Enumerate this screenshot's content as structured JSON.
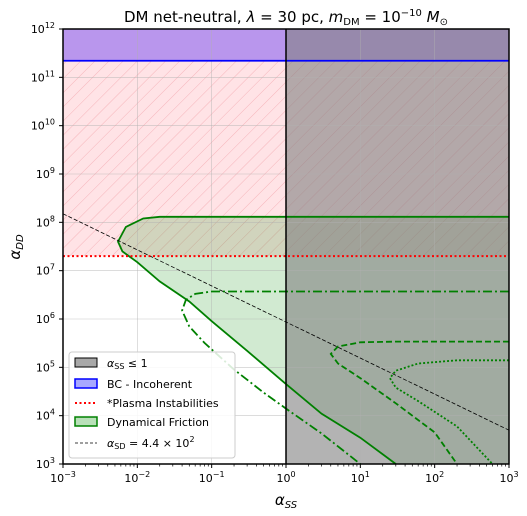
{
  "chart_data": {
    "type": "area",
    "title_parts": {
      "prefix": "DM net-neutral, ",
      "lambda": "λ",
      "lambda_value": " = 30 pc, ",
      "m": "m",
      "dm_sub": "DM",
      "mass_value": " = 10",
      "mass_exp": "−10",
      "msun": " M",
      "sun_sub": "⊙"
    },
    "xlabel": {
      "main": "α",
      "sub": "SS"
    },
    "ylabel": {
      "main": "α",
      "sub": "DD"
    },
    "xscale": "log",
    "yscale": "log",
    "xlim": [
      0.001,
      1000
    ],
    "ylim": [
      1000,
      1000000000000
    ],
    "grid": true,
    "legend_position": "lower-left",
    "x_ticks": [
      {
        "base": "10",
        "exp": "−3",
        "value": 0.001
      },
      {
        "base": "10",
        "exp": "−2",
        "value": 0.01
      },
      {
        "base": "10",
        "exp": "−1",
        "value": 0.1
      },
      {
        "base": "10",
        "exp": "0",
        "value": 1
      },
      {
        "base": "10",
        "exp": "1",
        "value": 10
      },
      {
        "base": "10",
        "exp": "2",
        "value": 100
      },
      {
        "base": "10",
        "exp": "3",
        "value": 1000
      }
    ],
    "y_ticks": [
      {
        "base": "10",
        "exp": "3",
        "value": 1000
      },
      {
        "base": "10",
        "exp": "4",
        "value": 10000
      },
      {
        "base": "10",
        "exp": "5",
        "value": 100000
      },
      {
        "base": "10",
        "exp": "6",
        "value": 1000000
      },
      {
        "base": "10",
        "exp": "7",
        "value": 10000000
      },
      {
        "base": "10",
        "exp": "8",
        "value": 100000000
      },
      {
        "base": "10",
        "exp": "9",
        "value": 1000000000
      },
      {
        "base": "10",
        "exp": "10",
        "value": 10000000000
      },
      {
        "base": "10",
        "exp": "11",
        "value": 100000000000
      },
      {
        "base": "10",
        "exp": "12",
        "value": 1000000000000
      }
    ],
    "regions": {
      "ss_le_1": {
        "x_min": 1,
        "x_max": 1000,
        "y_min": 1000,
        "y_max": 1000000000000,
        "color": "#808080"
      },
      "bc_incoherent": {
        "y_min": 220000000000,
        "y_max": 1000000000000,
        "color": "#7f3fdf",
        "edge_color": "#0000ff"
      },
      "plasma": {
        "y_min": 20000000,
        "y_max": 220000000000,
        "color": "#ffb0b8",
        "line_color": "#ff0000",
        "line_y": 20000000
      },
      "dynamical_friction": {
        "color": "#2ca02c",
        "edge_color": "#008000"
      }
    },
    "series": [
      {
        "name": "dynamical_friction_solid",
        "style": "solid",
        "points": [
          [
            1000,
            130000000
          ],
          [
            20,
            130000000
          ],
          [
            0.02,
            130000000
          ],
          [
            0.012,
            120000000
          ],
          [
            0.007,
            80000000
          ],
          [
            0.0055,
            40000000
          ],
          [
            0.0063,
            25000000
          ],
          [
            0.01,
            15000000
          ],
          [
            0.02,
            6000000
          ],
          [
            0.05,
            2300000
          ],
          [
            0.1,
            900000
          ],
          [
            0.3,
            220000
          ],
          [
            1,
            45000
          ],
          [
            3,
            11000
          ],
          [
            10,
            3500
          ],
          [
            30,
            1000
          ]
        ]
      },
      {
        "name": "dynamical_friction_dashdot",
        "style": "dashdot",
        "points": [
          [
            1000,
            3700000
          ],
          [
            100,
            3700000
          ],
          [
            0.1,
            3700000
          ],
          [
            0.06,
            3300000
          ],
          [
            0.045,
            2500000
          ],
          [
            0.04,
            1500000
          ],
          [
            0.05,
            700000
          ],
          [
            0.08,
            320000
          ],
          [
            0.2,
            90000
          ],
          [
            0.5,
            30000
          ],
          [
            1,
            14000
          ],
          [
            3,
            4300
          ],
          [
            10,
            1000
          ]
        ]
      },
      {
        "name": "dynamical_friction_dashed",
        "style": "dashed",
        "points": [
          [
            1000,
            340000
          ],
          [
            30,
            340000
          ],
          [
            10,
            330000
          ],
          [
            5,
            270000
          ],
          [
            4,
            190000
          ],
          [
            5,
            120000
          ],
          [
            10,
            60000
          ],
          [
            30,
            18000
          ],
          [
            100,
            4500
          ],
          [
            200,
            1000
          ]
        ]
      },
      {
        "name": "dynamical_friction_dotted",
        "style": "dotted",
        "points": [
          [
            1000,
            140000
          ],
          [
            200,
            140000
          ],
          [
            60,
            120000
          ],
          [
            30,
            85000
          ],
          [
            25,
            60000
          ],
          [
            30,
            38000
          ],
          [
            60,
            20000
          ],
          [
            200,
            6000
          ],
          [
            600,
            1000
          ]
        ]
      },
      {
        "name": "alpha_sd_line",
        "style": "thin-dashed",
        "points": [
          [
            0.001,
            150000000
          ],
          [
            1000,
            5000
          ]
        ]
      }
    ],
    "legend": [
      {
        "key": "ss",
        "math": "α",
        "sub": "SS",
        "tail": " ≤ 1",
        "style": "fill",
        "face": "#a8a8a8",
        "edge": "#000000"
      },
      {
        "key": "bc",
        "text": "BC - Incoherent",
        "style": "fill",
        "face": "#a8a8ff",
        "edge": "#0000ff"
      },
      {
        "key": "plasma",
        "text": "*Plasma Instabilities",
        "style": "dotted-line",
        "edge": "#ff0000"
      },
      {
        "key": "df",
        "text": "Dynamical Friction",
        "style": "fill",
        "face": "#b9e0b9",
        "edge": "#008000"
      },
      {
        "key": "sd",
        "math": "α",
        "sub": "SD",
        "tail": " = 4.4 × 10",
        "sup": "2",
        "style": "thin-dashed",
        "edge": "#000000"
      }
    ]
  }
}
